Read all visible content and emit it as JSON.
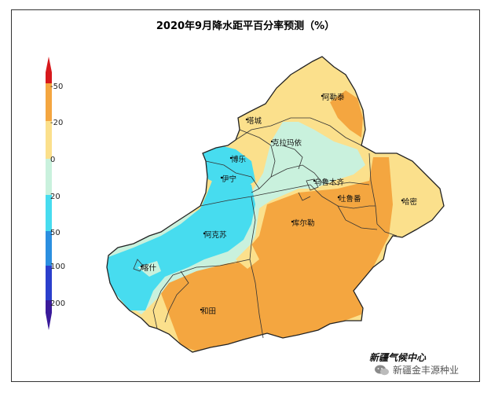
{
  "title": "2020年9月降水距平百分率预测（%）",
  "legend": {
    "labels": [
      "-50",
      "-20",
      "0",
      "20",
      "50",
      "100",
      "200"
    ],
    "colors": {
      "dark_red": "#d7191c",
      "orange": "#f4a640",
      "light_yellow": "#fbe08c",
      "mint": "#c9f1dd",
      "cyan": "#47dcef",
      "blue": "#2b8fe0",
      "deep_blue": "#2b3fcc",
      "indigo": "#3a1a9a"
    }
  },
  "cities": [
    "阿勒泰",
    "塔城",
    "克拉玛依",
    "博乐",
    "伊宁",
    "乌鲁木齐",
    "吐鲁番",
    "哈密",
    "阿克苏",
    "库尔勒",
    "喀什",
    "和田"
  ],
  "source": "新疆气候中心",
  "watermark": "新疆金丰源种业",
  "watermark_icon": "wechat-icon"
}
